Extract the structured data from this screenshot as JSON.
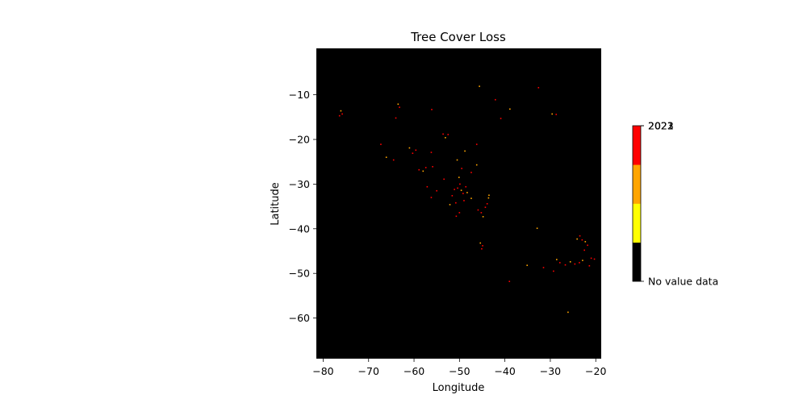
{
  "chart_data": {
    "type": "heatmap",
    "title": "Tree Cover Loss",
    "xlabel": "Longitude",
    "ylabel": "Latitude",
    "xlim": [
      -81.5,
      -18.8
    ],
    "ylim": [
      -69.1,
      0.4
    ],
    "x_ticks": [
      -80,
      -70,
      -60,
      -50,
      -40,
      -30,
      -20
    ],
    "x_tick_labels": [
      "−80",
      "−70",
      "−60",
      "−50",
      "−40",
      "−30",
      "−20"
    ],
    "y_ticks": [
      -10,
      -20,
      -30,
      -40,
      -50,
      -60
    ],
    "y_tick_labels": [
      "−10",
      "−20",
      "−30",
      "−40",
      "−50",
      "−60"
    ],
    "background_color": "#000000",
    "colorbar": {
      "colors": [
        "#000000",
        "#ffff00",
        "#ffa500",
        "#ff0000"
      ],
      "tick_labels": [
        "No value data",
        "2021",
        "2022",
        "2023"
      ]
    },
    "loss_points": [
      [
        -76.1,
        -13.6
      ],
      [
        -75.8,
        -14.3
      ],
      [
        -76.4,
        -14.7
      ],
      [
        -63.5,
        -12.1
      ],
      [
        -63.2,
        -12.8
      ],
      [
        -64.0,
        -15.2
      ],
      [
        -45.6,
        -8.1
      ],
      [
        -32.6,
        -8.4
      ],
      [
        -42.1,
        -11.1
      ],
      [
        -38.9,
        -13.2
      ],
      [
        -56.1,
        -13.3
      ],
      [
        -40.9,
        -15.3
      ],
      [
        -29.6,
        -14.3
      ],
      [
        -28.7,
        -14.4
      ],
      [
        -67.3,
        -21.1
      ],
      [
        -61.0,
        -21.9
      ],
      [
        -59.6,
        -22.4
      ],
      [
        -60.3,
        -23.1
      ],
      [
        -66.1,
        -24.0
      ],
      [
        -64.5,
        -24.6
      ],
      [
        -53.6,
        -18.8
      ],
      [
        -53.1,
        -19.6
      ],
      [
        -52.5,
        -18.9
      ],
      [
        -46.2,
        -21.1
      ],
      [
        -48.8,
        -22.6
      ],
      [
        -56.2,
        -22.9
      ],
      [
        -57.4,
        -26.3
      ],
      [
        -58.0,
        -27.1
      ],
      [
        -58.9,
        -26.8
      ],
      [
        -55.9,
        -26.1
      ],
      [
        -50.5,
        -24.6
      ],
      [
        -49.5,
        -26.5
      ],
      [
        -47.4,
        -27.4
      ],
      [
        -46.2,
        -25.7
      ],
      [
        -53.4,
        -28.9
      ],
      [
        -57.1,
        -30.6
      ],
      [
        -50.1,
        -28.5
      ],
      [
        -49.9,
        -30.0
      ],
      [
        -50.4,
        -30.9
      ],
      [
        -49.6,
        -31.4
      ],
      [
        -49.2,
        -32.1
      ],
      [
        -48.6,
        -30.6
      ],
      [
        -48.3,
        -31.9
      ],
      [
        -51.1,
        -31.2
      ],
      [
        -51.6,
        -32.6
      ],
      [
        -47.4,
        -33.2
      ],
      [
        -50.8,
        -34.2
      ],
      [
        -49.0,
        -33.7
      ],
      [
        -43.6,
        -33.1
      ],
      [
        -43.9,
        -34.4
      ],
      [
        -44.3,
        -35.2
      ],
      [
        -43.5,
        -32.5
      ],
      [
        -45.9,
        -35.8
      ],
      [
        -45.2,
        -36.4
      ],
      [
        -44.8,
        -37.3
      ],
      [
        -50.0,
        -36.4
      ],
      [
        -50.7,
        -37.2
      ],
      [
        -52.1,
        -34.6
      ],
      [
        -56.2,
        -33.0
      ],
      [
        -55.0,
        -31.5
      ],
      [
        -45.4,
        -43.2
      ],
      [
        -44.9,
        -43.8
      ],
      [
        -45.1,
        -44.5
      ],
      [
        -32.9,
        -39.9
      ],
      [
        -23.5,
        -41.6
      ],
      [
        -23.0,
        -42.5
      ],
      [
        -22.3,
        -42.9
      ],
      [
        -21.8,
        -43.7
      ],
      [
        -22.5,
        -44.8
      ],
      [
        -24.1,
        -42.3
      ],
      [
        -21.0,
        -46.6
      ],
      [
        -20.3,
        -46.8
      ],
      [
        -22.9,
        -47.1
      ],
      [
        -23.6,
        -47.6
      ],
      [
        -24.6,
        -47.9
      ],
      [
        -25.6,
        -47.4
      ],
      [
        -26.7,
        -48.1
      ],
      [
        -27.9,
        -47.6
      ],
      [
        -28.6,
        -46.9
      ],
      [
        -29.3,
        -49.5
      ],
      [
        -31.5,
        -48.7
      ],
      [
        -35.1,
        -48.2
      ],
      [
        -21.4,
        -48.3
      ],
      [
        -39.0,
        -51.8
      ],
      [
        -26.1,
        -58.7
      ]
    ]
  }
}
